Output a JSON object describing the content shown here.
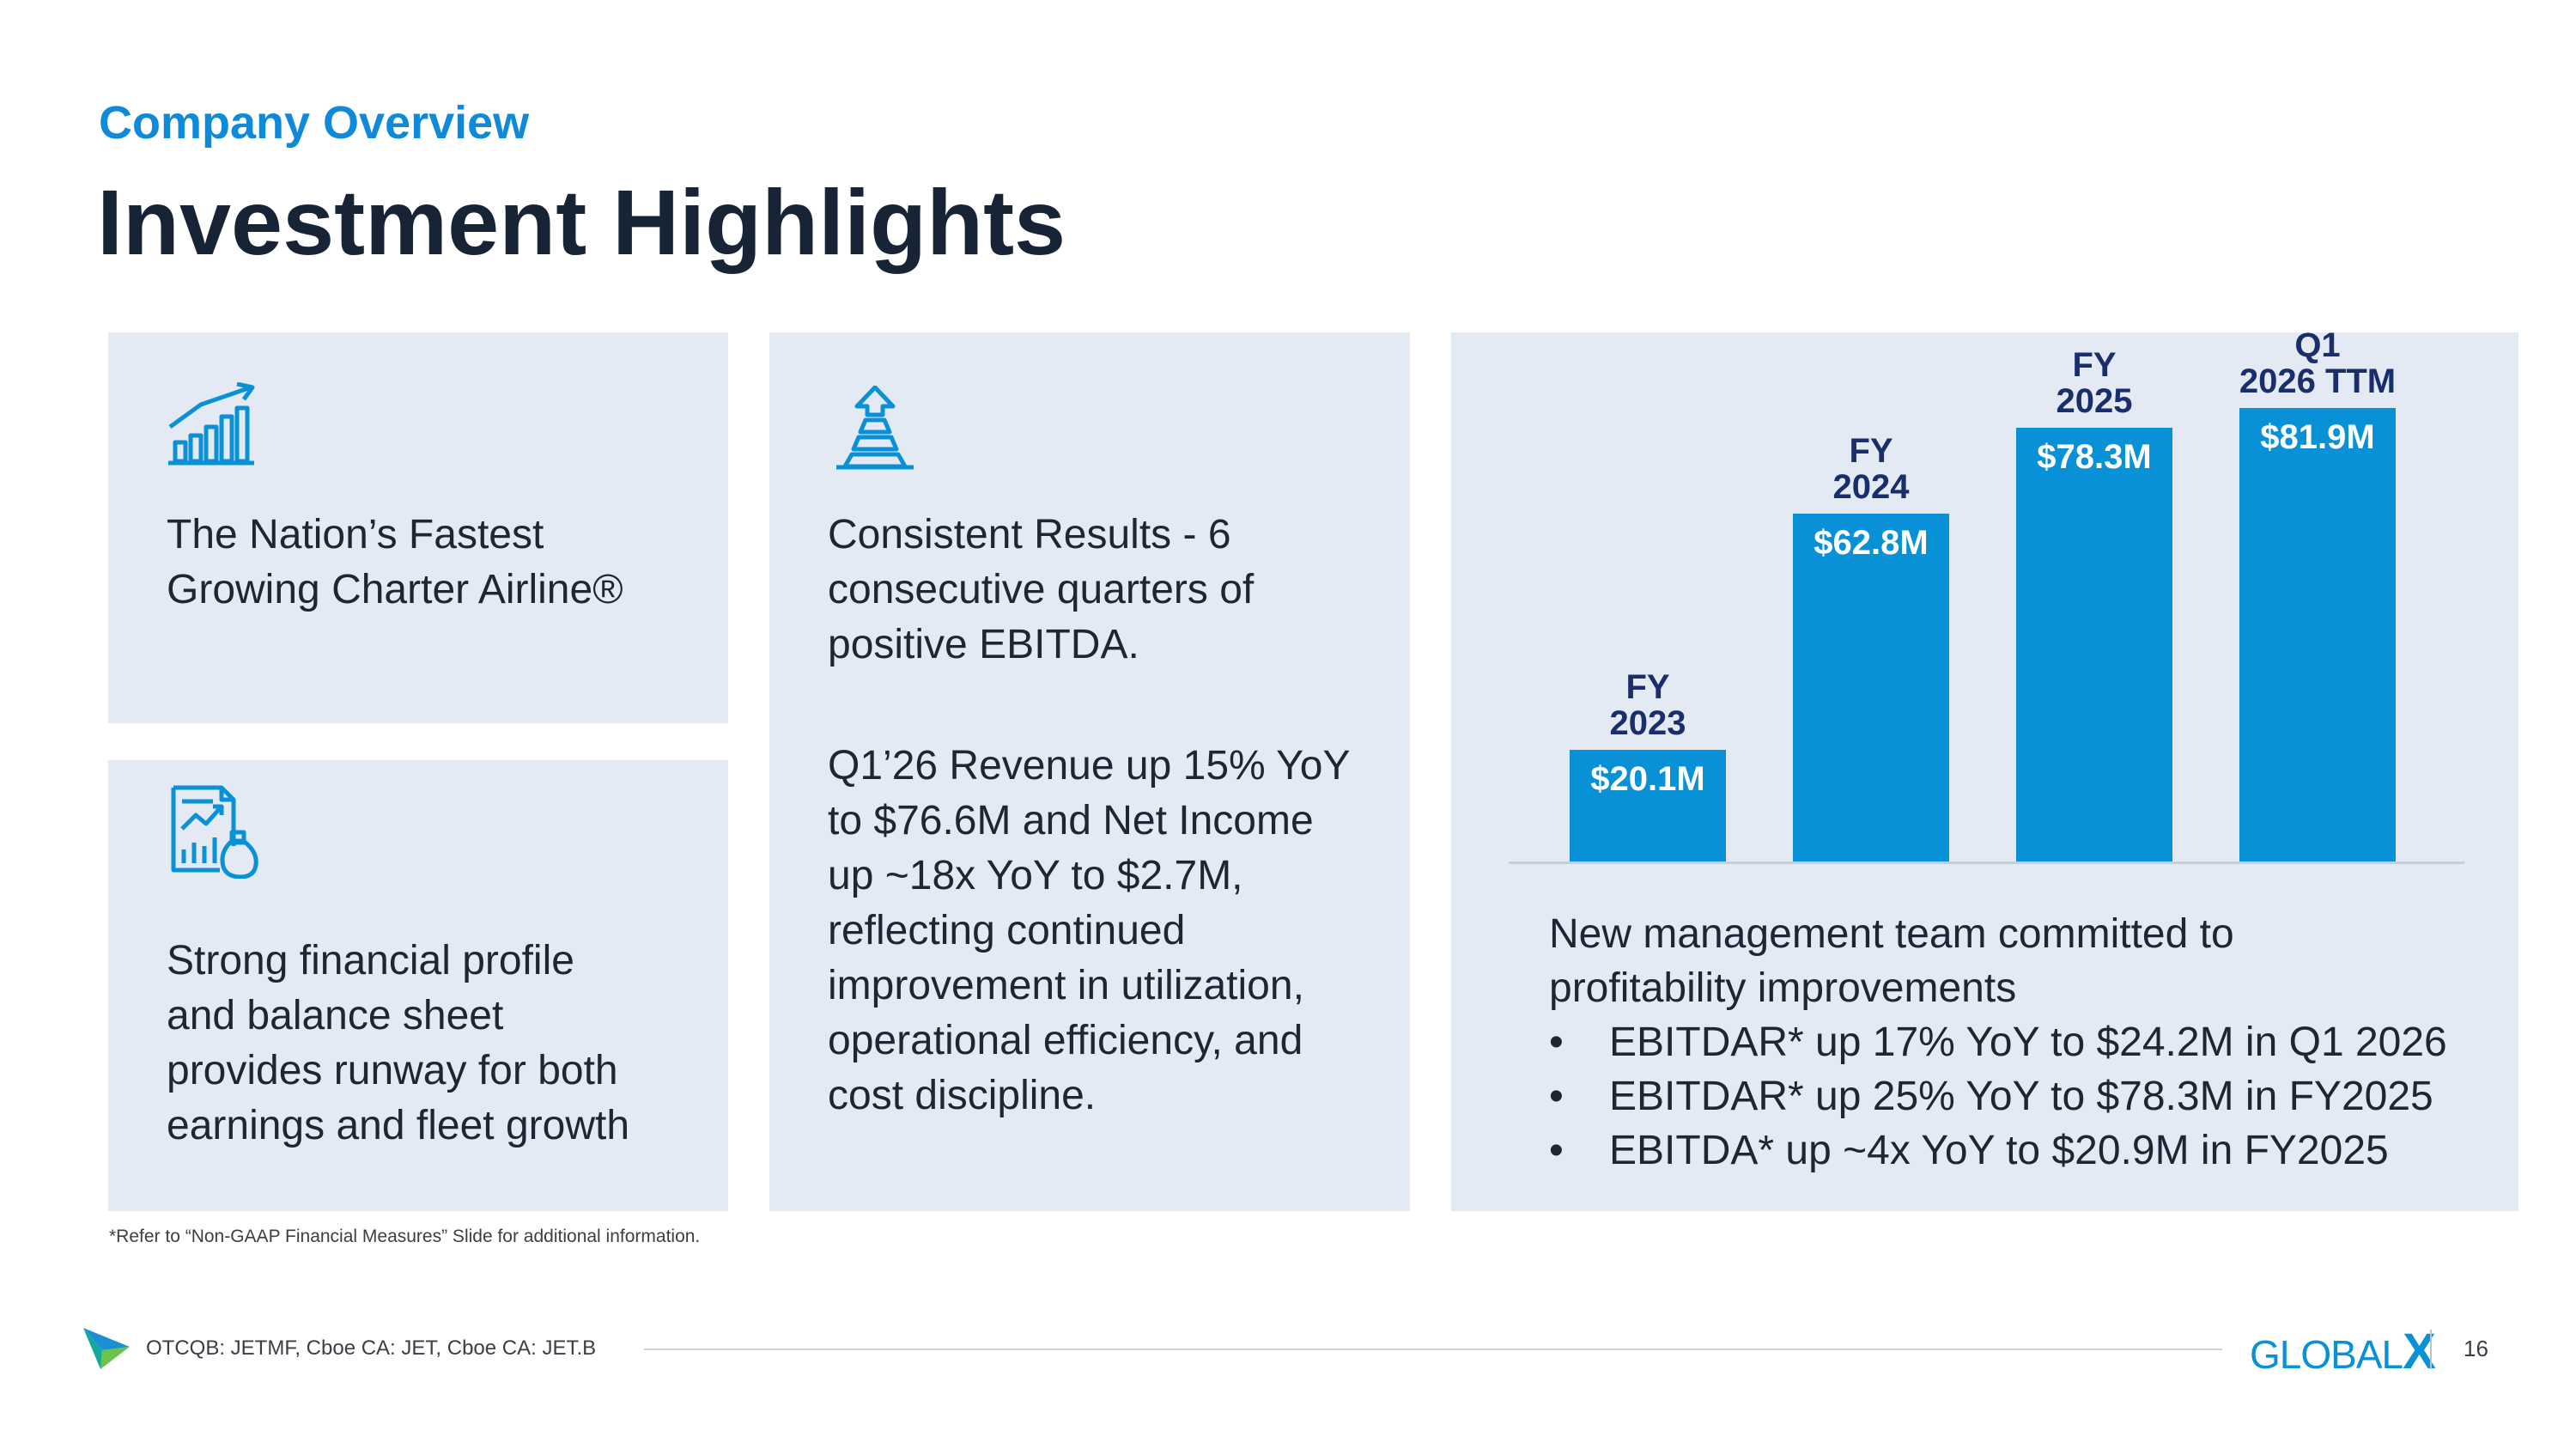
{
  "header": {
    "section": "Company Overview",
    "title": "Investment Highlights"
  },
  "cards": {
    "growth": {
      "icon": "growth-chart-icon",
      "text_line1": "The Nation’s Fastest",
      "text_line2": "Growing Charter Airline®"
    },
    "financial": {
      "icon": "financial-report-icon",
      "lines": [
        "Strong financial profile",
        "and balance sheet",
        "provides runway for both",
        "earnings and fleet growth"
      ]
    },
    "results": {
      "icon": "upward-pyramid-icon",
      "para1": [
        "Consistent Results - 6",
        "consecutive quarters of",
        "positive EBITDA."
      ],
      "para2": [
        "Q1’26 Revenue up 15% YoY",
        "to $76.6M and Net Income",
        "up ~18x YoY to $2.7M,",
        "reflecting continued",
        "improvement in utilization,",
        "operational efficiency, and",
        "cost discipline."
      ]
    }
  },
  "chart_data": {
    "type": "bar",
    "categories": [
      "FY 2023",
      "FY 2024",
      "FY 2025",
      "Q1 2026 TTM"
    ],
    "category_lines": [
      [
        "FY",
        "2023"
      ],
      [
        "FY",
        "2024"
      ],
      [
        "FY",
        "2025"
      ],
      [
        "Q1",
        "2026 TTM"
      ]
    ],
    "values": [
      20.1,
      62.8,
      78.3,
      81.9
    ],
    "value_labels": [
      "$20.1M",
      "$62.8M",
      "$78.3M",
      "$81.9M"
    ],
    "title": "",
    "xlabel": "",
    "ylabel": "",
    "ylim": [
      0,
      90
    ],
    "grid": false,
    "bar_color": "#0891d6"
  },
  "management": {
    "line1": "New management team committed to",
    "line2": "profitability improvements",
    "bullets": [
      "EBITDAR* up 17% YoY to $24.2M in Q1 2026",
      "EBITDAR* up 25% YoY to $78.3M in FY2025",
      "EBITDA* up ~4x YoY to $20.9M in FY2025"
    ]
  },
  "footnote": "*Refer to “Non-GAAP Financial Measures” Slide for additional information.",
  "footer": {
    "tickers": "OTCQB: JETMF, Cboe CA: JET, Cboe CA: JET.B",
    "logo_text": "GLOBAL",
    "logo_x": "X",
    "page_number": "16"
  },
  "colors": {
    "accent": "#0f8ad8",
    "title": "#172435",
    "card_bg": "#e4eaf3",
    "bar": "#0891d6",
    "category_label": "#1a2e6b"
  }
}
